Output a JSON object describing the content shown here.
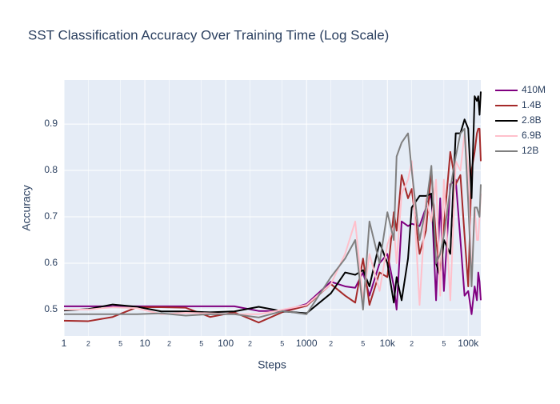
{
  "chart_data": {
    "type": "line",
    "title": "SST Classification Accuracy Over Training Time (Log Scale)",
    "x_label": "Steps",
    "y_label": "Accuracy",
    "xscale": "log",
    "grid": true,
    "legend": "right",
    "xlim": [
      1,
      143000
    ],
    "ylim": [
      0.443,
      0.995
    ],
    "xticks": [
      1,
      2,
      5,
      10,
      {
        "value": 20,
        "label": "2"
      },
      {
        "value": 50,
        "label": "5"
      },
      100,
      {
        "value": 200,
        "label": "2"
      },
      {
        "value": 500,
        "label": "5"
      },
      1000,
      {
        "value": 2000,
        "label": "2"
      },
      {
        "value": 5000,
        "label": "5"
      },
      {
        "value": 10000,
        "label": "10k"
      },
      {
        "value": 20000,
        "label": "2"
      },
      {
        "value": 50000,
        "label": "5"
      },
      {
        "value": 100000,
        "label": "100k"
      }
    ],
    "yticks": [
      0.5,
      0.6,
      0.7,
      0.8,
      0.9
    ],
    "x": [
      1,
      2,
      4,
      8,
      16,
      32,
      64,
      128,
      256,
      512,
      1000,
      2000,
      3000,
      4000,
      5000,
      6000,
      8000,
      10000,
      12000,
      13000,
      15000,
      18000,
      20000,
      25000,
      30000,
      35000,
      40000,
      45000,
      50000,
      60000,
      70000,
      80000,
      90000,
      100000,
      110000,
      120000,
      128000,
      133000,
      138000,
      143000
    ],
    "series": [
      {
        "name": "410M",
        "color": "#800080",
        "values": [
          0.507,
          0.507,
          0.507,
          0.507,
          0.507,
          0.507,
          0.507,
          0.507,
          0.497,
          0.497,
          0.512,
          0.56,
          0.55,
          0.547,
          0.58,
          0.53,
          0.6,
          0.62,
          0.55,
          0.5,
          0.69,
          0.68,
          0.685,
          0.68,
          0.72,
          0.75,
          0.52,
          0.74,
          0.54,
          0.77,
          0.78,
          0.65,
          0.53,
          0.54,
          0.49,
          0.55,
          0.52,
          0.58,
          0.56,
          0.52
        ]
      },
      {
        "name": "1.4B",
        "color": "#a52a2a",
        "values": [
          0.476,
          0.475,
          0.484,
          0.505,
          0.505,
          0.504,
          0.484,
          0.494,
          0.472,
          0.495,
          0.508,
          0.555,
          0.53,
          0.515,
          0.61,
          0.51,
          0.58,
          0.57,
          0.71,
          0.67,
          0.79,
          0.74,
          0.76,
          0.62,
          0.67,
          0.8,
          0.65,
          0.58,
          0.68,
          0.84,
          0.77,
          0.79,
          0.66,
          0.55,
          0.8,
          0.84,
          0.88,
          0.89,
          0.89,
          0.82
        ]
      },
      {
        "name": "2.8B",
        "color": "#000000",
        "values": [
          0.498,
          0.501,
          0.511,
          0.506,
          0.496,
          0.496,
          0.494,
          0.496,
          0.506,
          0.496,
          0.492,
          0.535,
          0.58,
          0.575,
          0.585,
          0.55,
          0.645,
          0.6,
          0.515,
          0.57,
          0.52,
          0.61,
          0.72,
          0.745,
          0.745,
          0.75,
          0.6,
          0.57,
          0.65,
          0.62,
          0.88,
          0.88,
          0.91,
          0.89,
          0.74,
          0.96,
          0.95,
          0.96,
          0.92,
          0.97
        ]
      },
      {
        "name": "6.9B",
        "color": "#ffc0cb",
        "values": [
          0.5,
          0.5,
          0.505,
          0.503,
          0.49,
          0.493,
          0.492,
          0.49,
          0.49,
          0.5,
          0.51,
          0.555,
          0.62,
          0.69,
          0.52,
          0.62,
          0.54,
          0.64,
          0.68,
          0.6,
          0.75,
          0.78,
          0.82,
          0.51,
          0.74,
          0.69,
          0.78,
          0.53,
          0.78,
          0.52,
          0.82,
          0.8,
          0.88,
          0.8,
          0.56,
          0.72,
          0.65,
          0.65,
          0.7,
          0.75
        ]
      },
      {
        "name": "12B",
        "color": "#808080",
        "values": [
          0.49,
          0.49,
          0.49,
          0.49,
          0.492,
          0.487,
          0.49,
          0.49,
          0.483,
          0.497,
          0.49,
          0.57,
          0.61,
          0.65,
          0.5,
          0.69,
          0.6,
          0.71,
          0.65,
          0.83,
          0.86,
          0.88,
          0.8,
          0.65,
          0.72,
          0.81,
          0.6,
          0.62,
          0.66,
          0.76,
          0.83,
          0.88,
          0.89,
          0.73,
          0.55,
          0.72,
          0.72,
          0.71,
          0.7,
          0.77
        ]
      }
    ]
  }
}
